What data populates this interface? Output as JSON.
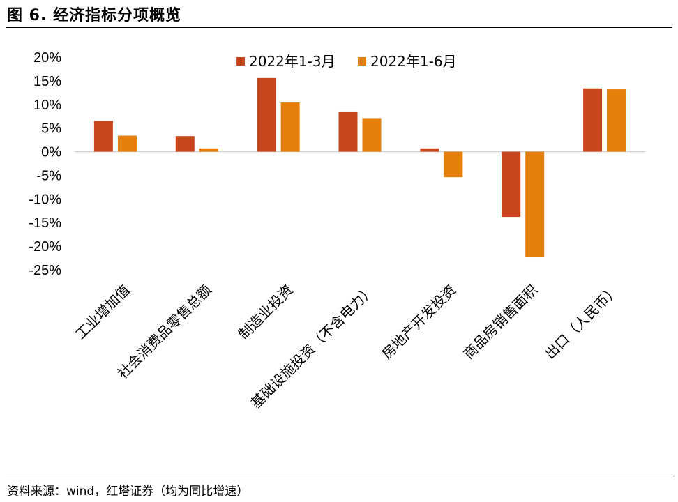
{
  "figure": {
    "title": "图 6. 经济指标分项概览",
    "source": "资料来源：wind，红塔证券（均为同比增速）"
  },
  "colors": {
    "series_1": "#c8461b",
    "series_2": "#e47f0c",
    "axis": "#d0d0d0"
  },
  "chart_data": {
    "type": "bar",
    "title": "",
    "xlabel": "",
    "ylabel": "",
    "ylim": [
      -25,
      20
    ],
    "yticks": [
      "20%",
      "15%",
      "10%",
      "5%",
      "0%",
      "-5%",
      "-10%",
      "-15%",
      "-20%",
      "-25%"
    ],
    "grid": false,
    "legend_position": "top-center",
    "categories": [
      "工业增加值",
      "社会消费品零售总额",
      "制造业投资",
      "基础设施投资（不含电力）",
      "房地产开发投资",
      "商品房销售面积",
      "出口（人民币）"
    ],
    "series": [
      {
        "name": "2022年1-3月",
        "values": [
          6.5,
          3.3,
          15.6,
          8.5,
          0.7,
          -13.8,
          13.4
        ]
      },
      {
        "name": "2022年1-6月",
        "values": [
          3.4,
          0.7,
          10.4,
          7.1,
          -5.4,
          -22.2,
          13.2
        ]
      }
    ]
  }
}
